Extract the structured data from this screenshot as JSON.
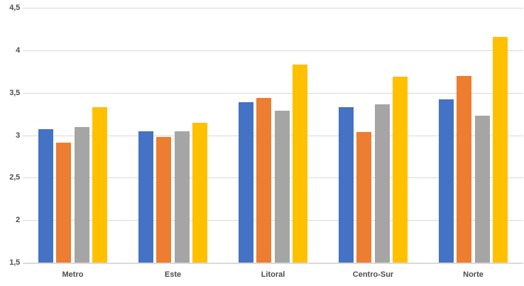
{
  "chart_data": {
    "type": "bar",
    "title": "",
    "xlabel": "",
    "ylabel": "",
    "categories": [
      "Metro",
      "Este",
      "Litoral",
      "Centro-Sur",
      "Norte"
    ],
    "series": [
      {
        "name": "blue-series",
        "color": "#4472C4",
        "values": [
          3.07,
          3.05,
          3.39,
          3.33,
          3.42
        ]
      },
      {
        "name": "orange-series",
        "color": "#ED7D31",
        "values": [
          2.91,
          2.98,
          3.44,
          3.04,
          3.7
        ]
      },
      {
        "name": "gray-series",
        "color": "#A5A5A5",
        "values": [
          3.1,
          3.05,
          3.29,
          3.36,
          3.23
        ]
      },
      {
        "name": "yellow-series",
        "color": "#FFC000",
        "values": [
          3.33,
          3.15,
          3.83,
          3.69,
          4.16
        ]
      }
    ],
    "ylim": [
      1.5,
      4.5
    ],
    "ytick_step": 0.5,
    "ytick_labels": [
      "1,5",
      "2",
      "2,5",
      "3",
      "3,5",
      "4",
      "4,5"
    ],
    "decimal_separator": ",",
    "grid": true,
    "legend": false,
    "axis_text_color": "#4d4d4d",
    "gridline_color": "#d9d9d9",
    "background_color": "#ffffff"
  }
}
